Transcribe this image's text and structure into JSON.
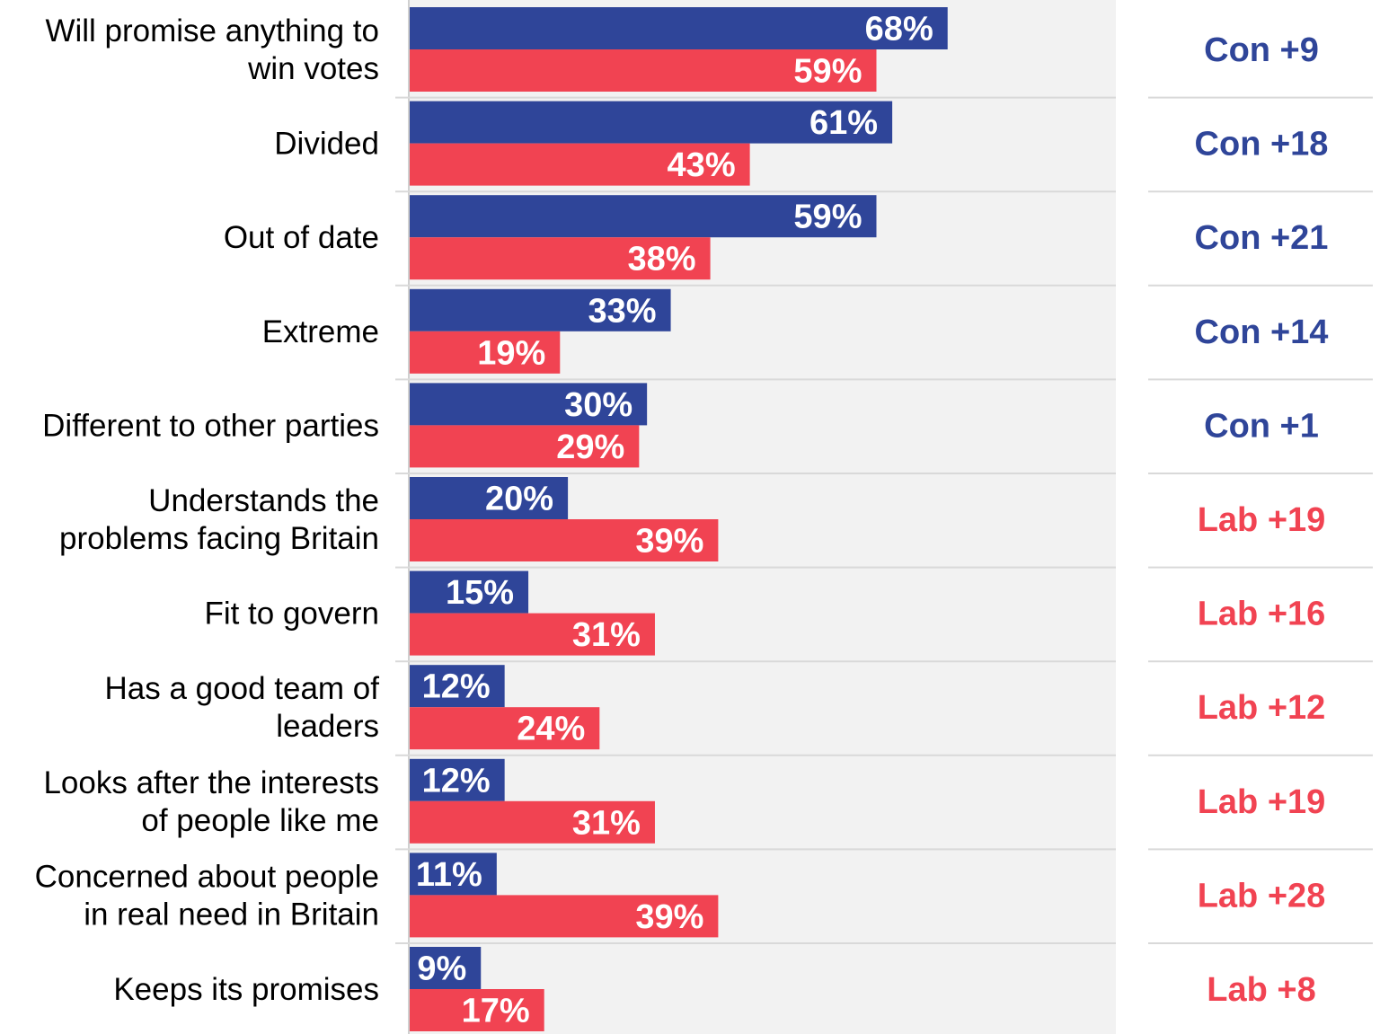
{
  "chart_data": {
    "type": "bar",
    "orientation": "horizontal",
    "categories": [
      [
        "Will promise anything to",
        "win votes"
      ],
      [
        "Divided"
      ],
      [
        "Out of date"
      ],
      [
        "Extreme"
      ],
      [
        "Different to other parties"
      ],
      [
        "Understands the",
        "problems facing Britain"
      ],
      [
        "Fit to govern"
      ],
      [
        "Has a good team of",
        "leaders"
      ],
      [
        "Looks after the interests",
        "of people like me"
      ],
      [
        "Concerned about people",
        "in real need in Britain"
      ],
      [
        "Keeps its promises"
      ]
    ],
    "series": [
      {
        "color": "#2f4599",
        "values": [
          68,
          61,
          59,
          33,
          30,
          20,
          15,
          12,
          12,
          11,
          9
        ]
      },
      {
        "color": "#f14352",
        "values": [
          59,
          43,
          38,
          19,
          29,
          39,
          31,
          24,
          31,
          39,
          17
        ]
      }
    ],
    "value_suffix": "%",
    "differences": [
      {
        "text": "Con +9",
        "party": "con"
      },
      {
        "text": "Con +18",
        "party": "con"
      },
      {
        "text": "Con +21",
        "party": "con"
      },
      {
        "text": "Con +14",
        "party": "con"
      },
      {
        "text": "Con +1",
        "party": "con"
      },
      {
        "text": "Lab +19",
        "party": "lab"
      },
      {
        "text": "Lab +16",
        "party": "lab"
      },
      {
        "text": "Lab +12",
        "party": "lab"
      },
      {
        "text": "Lab +19",
        "party": "lab"
      },
      {
        "text": "Lab +28",
        "party": "lab"
      },
      {
        "text": "Lab +8",
        "party": "lab"
      }
    ],
    "difference_colors": {
      "con": "#2f4599",
      "lab": "#f14352"
    },
    "xlim": [
      0,
      80
    ],
    "plot_background": "#f2f2f2",
    "separator_color": "#d9d9d9",
    "grid": false,
    "legend": "none"
  }
}
